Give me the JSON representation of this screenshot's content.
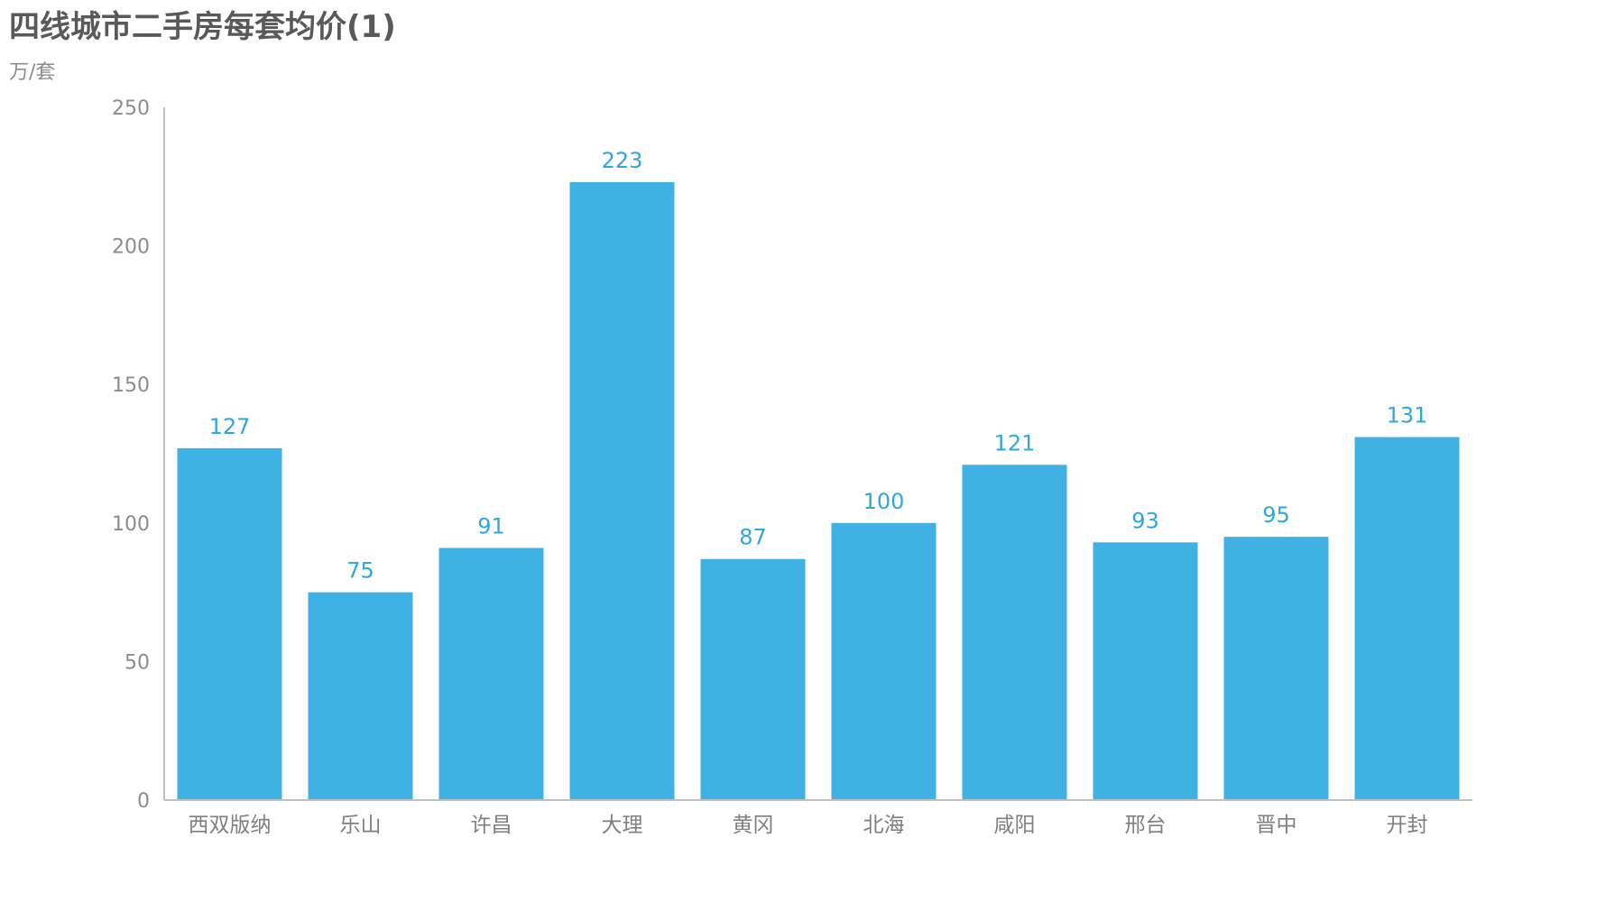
{
  "chart_data": {
    "type": "bar",
    "title": "四线城市二手房每套均价(1)",
    "ylabel": "万/套",
    "xlabel": "",
    "categories": [
      "西双版纳",
      "乐山",
      "许昌",
      "大理",
      "黄冈",
      "北海",
      "咸阳",
      "邢台",
      "晋中",
      "开封"
    ],
    "values": [
      127,
      75,
      91,
      223,
      87,
      100,
      121,
      93,
      95,
      131
    ],
    "ylim": [
      0,
      250
    ],
    "yticks": [
      0,
      50,
      100,
      150,
      200,
      250
    ],
    "grid": false,
    "legend": "none",
    "bar_color": "#3fb1e3",
    "label_color": "#2ea7df",
    "axis_color": "#bfbfbf"
  }
}
